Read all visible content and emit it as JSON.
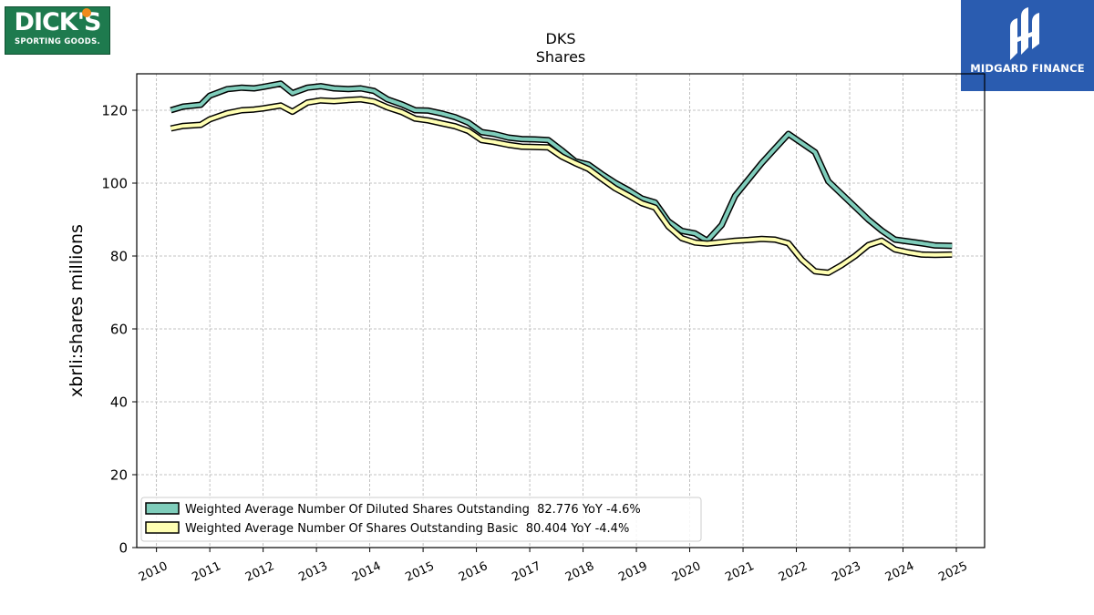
{
  "header": {
    "ticker": "DKS",
    "subtitle": "Shares"
  },
  "logos": {
    "left_big": "DICK'S",
    "left_small": "SPORTING GOODS.",
    "right_name": "MIDGARD FINANCE"
  },
  "chart_data": {
    "type": "line",
    "title": "DKS",
    "subtitle": "Shares",
    "ylabel": "xbrli:shares millions",
    "xlabel": "",
    "xlim": [
      2009.63,
      2025.53
    ],
    "ylim": [
      0,
      130
    ],
    "yticks": [
      0,
      20,
      40,
      60,
      80,
      100,
      120
    ],
    "xticks": [
      "2010",
      "2011",
      "2012",
      "2013",
      "2014",
      "2015",
      "2016",
      "2017",
      "2018",
      "2019",
      "2020",
      "2021",
      "2022",
      "2023",
      "2024",
      "2025"
    ],
    "grid": true,
    "legend": "lower-left",
    "series": [
      {
        "name": "Weighted Average Number Of Diluted Shares Outstanding  82.776 YoY -4.6%",
        "fill": "#7fcdbb",
        "points": [
          [
            2010.27,
            120.0
          ],
          [
            2010.5,
            121.0
          ],
          [
            2010.83,
            121.5
          ],
          [
            2011.0,
            124.0
          ],
          [
            2011.33,
            125.8
          ],
          [
            2011.6,
            126.2
          ],
          [
            2011.83,
            126.0
          ],
          [
            2012.0,
            126.4
          ],
          [
            2012.33,
            127.3
          ],
          [
            2012.55,
            124.7
          ],
          [
            2012.83,
            126.2
          ],
          [
            2013.08,
            126.6
          ],
          [
            2013.33,
            126.0
          ],
          [
            2013.6,
            125.8
          ],
          [
            2013.83,
            126.0
          ],
          [
            2014.08,
            125.3
          ],
          [
            2014.33,
            123.0
          ],
          [
            2014.6,
            121.6
          ],
          [
            2014.85,
            120.0
          ],
          [
            2015.1,
            119.9
          ],
          [
            2015.35,
            119.1
          ],
          [
            2015.6,
            118.1
          ],
          [
            2015.85,
            116.6
          ],
          [
            2016.1,
            114.0
          ],
          [
            2016.33,
            113.5
          ],
          [
            2016.6,
            112.5
          ],
          [
            2016.85,
            112.1
          ],
          [
            2017.1,
            112.0
          ],
          [
            2017.35,
            111.8
          ],
          [
            2017.6,
            109.0
          ],
          [
            2017.85,
            106.0
          ],
          [
            2018.1,
            105.1
          ],
          [
            2018.35,
            102.5
          ],
          [
            2018.6,
            100.1
          ],
          [
            2018.85,
            98.1
          ],
          [
            2019.1,
            95.8
          ],
          [
            2019.35,
            94.7
          ],
          [
            2019.6,
            89.5
          ],
          [
            2019.85,
            86.9
          ],
          [
            2020.1,
            86.2
          ],
          [
            2020.33,
            84.2
          ],
          [
            2020.6,
            88.5
          ],
          [
            2020.85,
            96.5
          ],
          [
            2021.1,
            101.0
          ],
          [
            2021.35,
            105.5
          ],
          [
            2021.6,
            109.5
          ],
          [
            2021.85,
            113.5
          ],
          [
            2022.1,
            111.0
          ],
          [
            2022.35,
            108.5
          ],
          [
            2022.6,
            100.5
          ],
          [
            2022.85,
            97.0
          ],
          [
            2023.1,
            93.5
          ],
          [
            2023.35,
            90.0
          ],
          [
            2023.6,
            87.0
          ],
          [
            2023.85,
            84.5
          ],
          [
            2024.1,
            84.0
          ],
          [
            2024.35,
            83.5
          ],
          [
            2024.6,
            82.9
          ],
          [
            2024.92,
            82.776
          ]
        ]
      },
      {
        "name": "Weighted Average Number Of Shares Outstanding Basic  80.404 YoY -4.4%",
        "fill": "#ffffb3",
        "points": [
          [
            2010.27,
            115.0
          ],
          [
            2010.5,
            115.7
          ],
          [
            2010.83,
            116.0
          ],
          [
            2011.0,
            117.5
          ],
          [
            2011.33,
            119.2
          ],
          [
            2011.6,
            120.0
          ],
          [
            2011.83,
            120.2
          ],
          [
            2012.0,
            120.5
          ],
          [
            2012.33,
            121.3
          ],
          [
            2012.55,
            119.6
          ],
          [
            2012.83,
            122.1
          ],
          [
            2013.08,
            122.7
          ],
          [
            2013.33,
            122.5
          ],
          [
            2013.6,
            122.8
          ],
          [
            2013.83,
            123.0
          ],
          [
            2014.08,
            122.4
          ],
          [
            2014.33,
            120.8
          ],
          [
            2014.6,
            119.5
          ],
          [
            2014.85,
            117.7
          ],
          [
            2015.1,
            117.2
          ],
          [
            2015.35,
            116.4
          ],
          [
            2015.6,
            115.6
          ],
          [
            2015.85,
            114.3
          ],
          [
            2016.1,
            111.8
          ],
          [
            2016.33,
            111.3
          ],
          [
            2016.6,
            110.5
          ],
          [
            2016.85,
            110.0
          ],
          [
            2017.1,
            109.9
          ],
          [
            2017.35,
            109.8
          ],
          [
            2017.6,
            107.3
          ],
          [
            2017.85,
            105.5
          ],
          [
            2018.1,
            103.9
          ],
          [
            2018.35,
            101.2
          ],
          [
            2018.6,
            98.6
          ],
          [
            2018.85,
            96.6
          ],
          [
            2019.1,
            94.5
          ],
          [
            2019.35,
            93.3
          ],
          [
            2019.6,
            88.1
          ],
          [
            2019.85,
            84.9
          ],
          [
            2020.1,
            83.7
          ],
          [
            2020.33,
            83.4
          ],
          [
            2020.6,
            83.8
          ],
          [
            2020.85,
            84.2
          ],
          [
            2021.1,
            84.4
          ],
          [
            2021.35,
            84.7
          ],
          [
            2021.6,
            84.5
          ],
          [
            2021.85,
            83.5
          ],
          [
            2022.1,
            79.0
          ],
          [
            2022.35,
            75.8
          ],
          [
            2022.6,
            75.4
          ],
          [
            2022.85,
            77.5
          ],
          [
            2023.1,
            80.0
          ],
          [
            2023.35,
            83.0
          ],
          [
            2023.6,
            84.2
          ],
          [
            2023.85,
            81.8
          ],
          [
            2024.1,
            81.0
          ],
          [
            2024.35,
            80.4
          ],
          [
            2024.6,
            80.3
          ],
          [
            2024.92,
            80.404
          ]
        ]
      }
    ]
  }
}
